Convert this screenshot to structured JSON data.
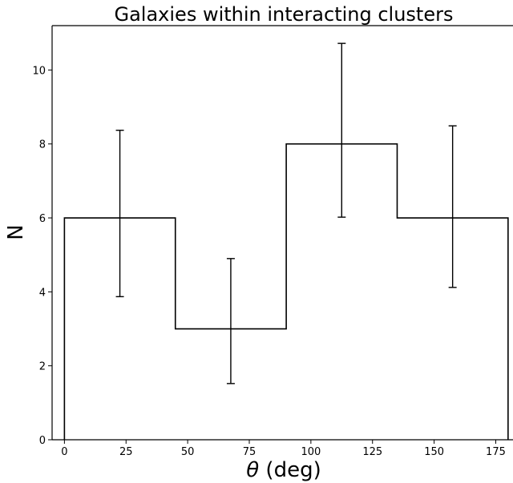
{
  "chart_data": {
    "type": "bar",
    "title": "Galaxies within interacting clusters",
    "xlabel_symbol": "θ",
    "xlabel_unit": " (deg)",
    "ylabel": "N",
    "xlim": [
      -5,
      182
    ],
    "ylim": [
      0,
      11.2
    ],
    "bin_edges": [
      0,
      45,
      90,
      135,
      180
    ],
    "bin_centers": [
      22.5,
      67.5,
      112.5,
      157.5
    ],
    "values": [
      6,
      3,
      8,
      6
    ],
    "error_low": [
      3.87,
      1.52,
      6.02,
      4.12
    ],
    "error_high": [
      8.37,
      4.9,
      10.72,
      8.49
    ],
    "x_ticks": [
      0,
      25,
      50,
      75,
      100,
      125,
      150,
      175
    ],
    "y_ticks": [
      0,
      2,
      4,
      6,
      8,
      10
    ],
    "histtype": "step",
    "grid": false
  }
}
